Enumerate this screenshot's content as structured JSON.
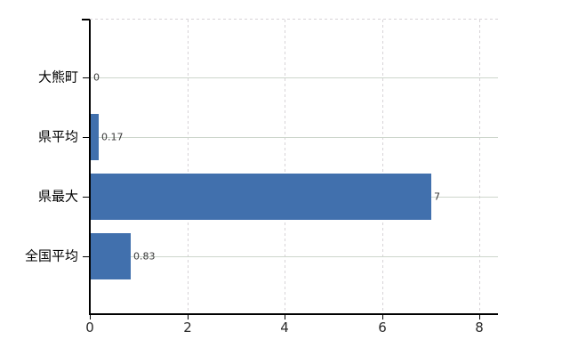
{
  "chart_data": {
    "type": "bar",
    "orientation": "horizontal",
    "title": "",
    "categories": [
      "大熊町",
      "県平均",
      "県最大",
      "全国平均"
    ],
    "values": [
      0,
      0.17,
      7,
      0.83
    ],
    "value_labels": [
      "0",
      "0.17",
      "7",
      "0.83"
    ],
    "x_ticks": [
      0,
      2,
      4,
      6,
      8
    ],
    "x_tick_labels": [
      "0",
      "2",
      "4",
      "6",
      "8"
    ],
    "xlim": [
      0,
      8.4
    ],
    "grid": "on",
    "gridline_style": {
      "vertical": "dashed",
      "horizontal": "solid",
      "top_border": "dashed"
    },
    "legend": "none",
    "colors": {
      "bar": "#4170ad",
      "grid_horizontal": "#cdd6cc",
      "grid_vertical": "#d7d3d7",
      "axis": "#000000",
      "value_label_text": "#3a3a3a",
      "tick_label_text": "#2b2b2b",
      "category_label_text": "#000000",
      "background": "#ffffff"
    }
  }
}
